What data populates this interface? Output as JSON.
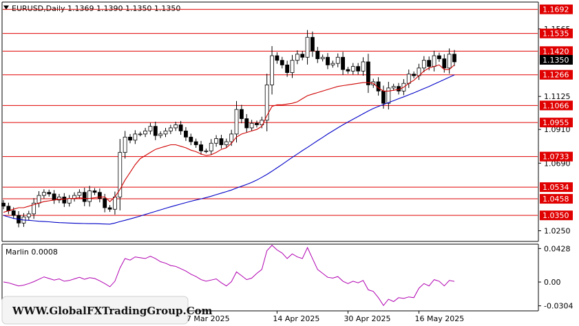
{
  "header": {
    "symbol_text": "EURUSD,Daily  1.1369 1.1390 1.1350 1.1350",
    "indicator_text": "Marlin 0.0008",
    "watermark": "WWW.GlobalFXTradingGroup.Com"
  },
  "colors": {
    "level": "#e00000",
    "ma_fast": "#d00000",
    "ma_slow": "#0000c8",
    "marlin": "#b000b0",
    "grid": "#a0a0a0",
    "current_tag_bg": "#000000"
  },
  "chart_data": [
    {
      "type": "candlestick",
      "title": "EURUSD,Daily",
      "ohlc_header": [
        1.1369,
        1.139,
        1.135,
        1.135
      ],
      "ylim": [
        1.0185,
        1.1735
      ],
      "price_axis_ticks": [
        "1.1565",
        "1.1125",
        "1.0910",
        "1.0690",
        "1.0250"
      ],
      "x_tick_labels": [
        "27 Mar 2025",
        "14 Apr 2025",
        "30 Apr 2025",
        "16 May 2025"
      ],
      "current_price": "1.1350",
      "horizontal_levels": [
        "1.1692",
        "1.1535",
        "1.1420",
        "1.1266",
        "1.1066",
        "1.0955",
        "1.0733",
        "1.0534",
        "1.0458",
        "1.0350"
      ],
      "close_series": [
        1.041,
        1.038,
        1.035,
        1.03,
        1.034,
        1.036,
        1.043,
        1.048,
        1.05,
        1.049,
        1.045,
        1.047,
        1.043,
        1.046,
        1.048,
        1.05,
        1.044,
        1.051,
        1.05,
        1.046,
        1.04,
        1.039,
        1.047,
        1.076,
        1.086,
        1.084,
        1.088,
        1.088,
        1.09,
        1.093,
        1.087,
        1.088,
        1.09,
        1.092,
        1.094,
        1.09,
        1.086,
        1.083,
        1.081,
        1.077,
        1.077,
        1.082,
        1.085,
        1.081,
        1.083,
        1.088,
        1.104,
        1.098,
        1.092,
        1.095,
        1.094,
        1.097,
        1.12,
        1.139,
        1.136,
        1.133,
        1.128,
        1.136,
        1.14,
        1.138,
        1.151,
        1.142,
        1.137,
        1.138,
        1.133,
        1.134,
        1.138,
        1.13,
        1.129,
        1.132,
        1.129,
        1.135,
        1.12,
        1.122,
        1.116,
        1.108,
        1.118,
        1.119,
        1.116,
        1.121,
        1.127,
        1.126,
        1.131,
        1.136,
        1.132,
        1.139,
        1.137,
        1.131,
        1.14,
        1.135
      ],
      "ma_fast": [
        1.037,
        1.038,
        1.039,
        1.04,
        1.04,
        1.041,
        1.042,
        1.043,
        1.044,
        1.0445,
        1.045,
        1.0455,
        1.0455,
        1.046,
        1.046,
        1.0465,
        1.046,
        1.046,
        1.0465,
        1.047,
        1.047,
        1.044,
        1.047,
        1.052,
        1.058,
        1.063,
        1.068,
        1.072,
        1.074,
        1.076,
        1.078,
        1.079,
        1.08,
        1.081,
        1.081,
        1.08,
        1.079,
        1.0775,
        1.0765,
        1.075,
        1.074,
        1.0745,
        1.076,
        1.078,
        1.079,
        1.082,
        1.086,
        1.088,
        1.089,
        1.09,
        1.091,
        1.093,
        1.1,
        1.106,
        1.107,
        1.107,
        1.1075,
        1.108,
        1.109,
        1.111,
        1.113,
        1.114,
        1.115,
        1.116,
        1.117,
        1.118,
        1.119,
        1.1195,
        1.12,
        1.1205,
        1.121,
        1.1215,
        1.1215,
        1.121,
        1.118,
        1.116,
        1.116,
        1.1165,
        1.117,
        1.1185,
        1.121,
        1.123,
        1.126,
        1.129,
        1.131,
        1.132,
        1.133,
        1.13,
        1.13,
        1.133
      ],
      "ma_slow": [
        1.035,
        1.034,
        1.033,
        1.0325,
        1.032,
        1.0318,
        1.0315,
        1.0312,
        1.031,
        1.0308,
        1.0305,
        1.0303,
        1.0302,
        1.03,
        1.0299,
        1.0298,
        1.0297,
        1.0296,
        1.0296,
        1.0295,
        1.0294,
        1.0293,
        1.03,
        1.031,
        1.0318,
        1.0327,
        1.0336,
        1.0346,
        1.0356,
        1.0366,
        1.0376,
        1.0386,
        1.0396,
        1.0406,
        1.0415,
        1.0424,
        1.0433,
        1.0442,
        1.045,
        1.0458,
        1.0466,
        1.0475,
        1.0485,
        1.0495,
        1.0505,
        1.0515,
        1.0528,
        1.054,
        1.0552,
        1.0565,
        1.058,
        1.0598,
        1.0617,
        1.0638,
        1.066,
        1.0682,
        1.0705,
        1.0728,
        1.075,
        1.0772,
        1.0793,
        1.0815,
        1.0837,
        1.0858,
        1.088,
        1.09,
        1.092,
        1.094,
        1.0958,
        1.0976,
        1.0994,
        1.1012,
        1.103,
        1.1046,
        1.106,
        1.1072,
        1.1085,
        1.1097,
        1.111,
        1.1122,
        1.1135,
        1.1148,
        1.1162,
        1.1176,
        1.119,
        1.1205,
        1.122,
        1.1235,
        1.125,
        1.1265
      ]
    },
    {
      "type": "line",
      "title": "Marlin 0.0008",
      "ylim": [
        -0.036,
        0.0475
      ],
      "axis_ticks": [
        "0.0428",
        "0.00",
        "-0.0304"
      ],
      "values": [
        0.0,
        -0.001,
        -0.003,
        -0.005,
        -0.004,
        -0.002,
        0.0005,
        0.0035,
        0.0065,
        0.0045,
        0.0025,
        0.004,
        0.001,
        0.002,
        0.004,
        0.006,
        0.0035,
        0.0055,
        0.0045,
        0.0015,
        -0.002,
        -0.006,
        0.001,
        0.018,
        0.03,
        0.028,
        0.032,
        0.031,
        0.03,
        0.033,
        0.03,
        0.026,
        0.024,
        0.021,
        0.02,
        0.017,
        0.014,
        0.01,
        0.007,
        0.003,
        0.001,
        0.0025,
        0.004,
        -0.001,
        -0.005,
        0.0005,
        0.013,
        0.008,
        0.003,
        0.005,
        0.011,
        0.016,
        0.04,
        0.047,
        0.041,
        0.037,
        0.03,
        0.036,
        0.032,
        0.03,
        0.044,
        0.03,
        0.016,
        0.011,
        0.006,
        0.005,
        0.007,
        0.001,
        -0.002,
        0.001,
        -0.001,
        0.002,
        -0.01,
        -0.012,
        -0.02,
        -0.03,
        -0.022,
        -0.025,
        -0.02,
        -0.021,
        -0.019,
        -0.02,
        -0.008,
        -0.002,
        -0.005,
        0.003,
        0.001,
        -0.005,
        0.002,
        0.0008
      ]
    }
  ]
}
